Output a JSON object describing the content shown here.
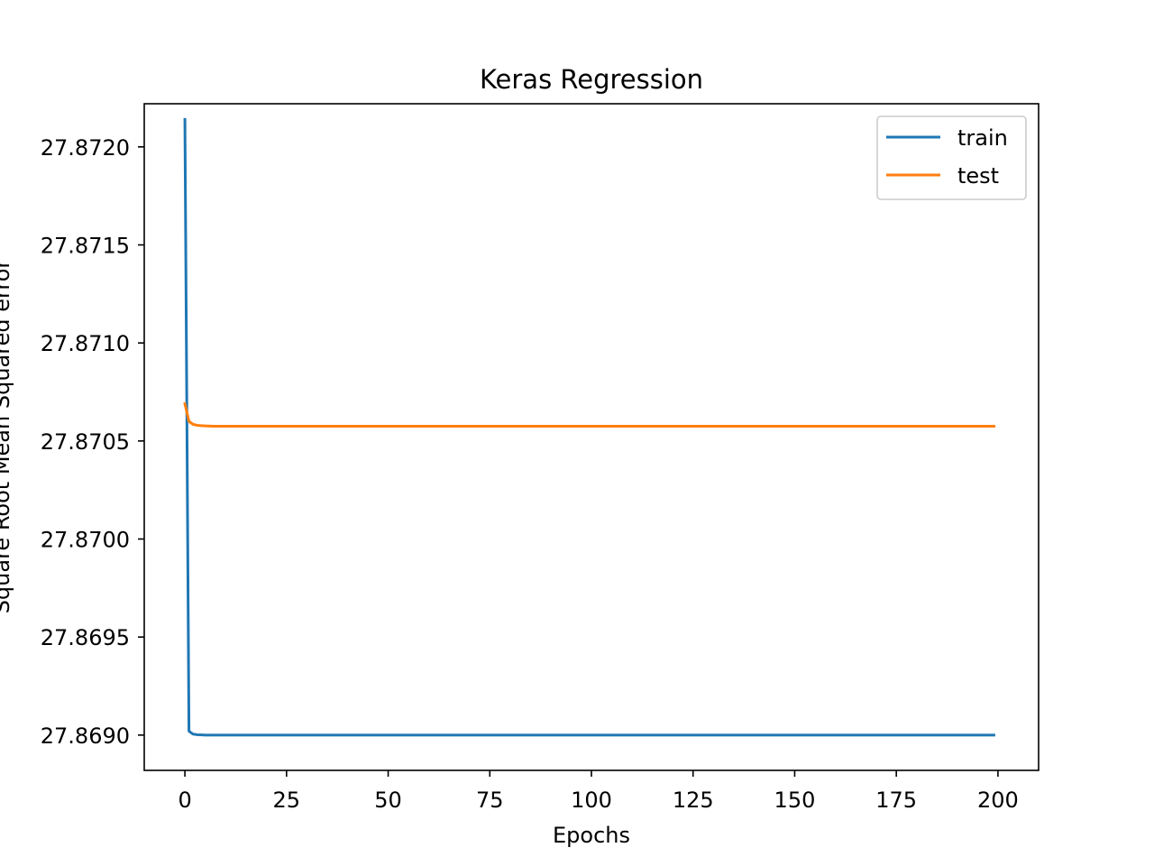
{
  "chart_data": {
    "type": "line",
    "title": "Keras Regression",
    "xlabel": "Epochs",
    "ylabel": "Square Root Mean Squared error",
    "xlim": [
      -10,
      210
    ],
    "ylim": [
      27.86882,
      27.87222
    ],
    "xticks": [
      0,
      25,
      50,
      75,
      100,
      125,
      150,
      175,
      200
    ],
    "xtick_labels": [
      "0",
      "25",
      "50",
      "75",
      "100",
      "125",
      "150",
      "175",
      "200"
    ],
    "yticks": [
      27.869,
      27.8695,
      27.87,
      27.8705,
      27.871,
      27.8715,
      27.872
    ],
    "ytick_labels": [
      "27.8690",
      "27.8695",
      "27.8700",
      "27.8705",
      "27.8710",
      "27.8715",
      "27.8720"
    ],
    "grid": false,
    "legend_position": "top-right",
    "series": [
      {
        "name": "train",
        "color": "#1f77b4",
        "x": [
          0,
          1,
          2,
          3,
          4,
          5,
          10,
          20,
          50,
          100,
          150,
          199
        ],
        "y": [
          27.87214,
          27.86902,
          27.869005,
          27.869002,
          27.869001,
          27.869,
          27.869,
          27.869,
          27.869,
          27.869,
          27.869,
          27.869
        ]
      },
      {
        "name": "test",
        "color": "#ff7f0e",
        "x": [
          0,
          1,
          2,
          3,
          4,
          5,
          7,
          10,
          50,
          100,
          150,
          199
        ],
        "y": [
          27.87069,
          27.8706,
          27.870585,
          27.87058,
          27.870578,
          27.870577,
          27.870575,
          27.870575,
          27.870575,
          27.870575,
          27.870575,
          27.870575
        ]
      }
    ]
  }
}
